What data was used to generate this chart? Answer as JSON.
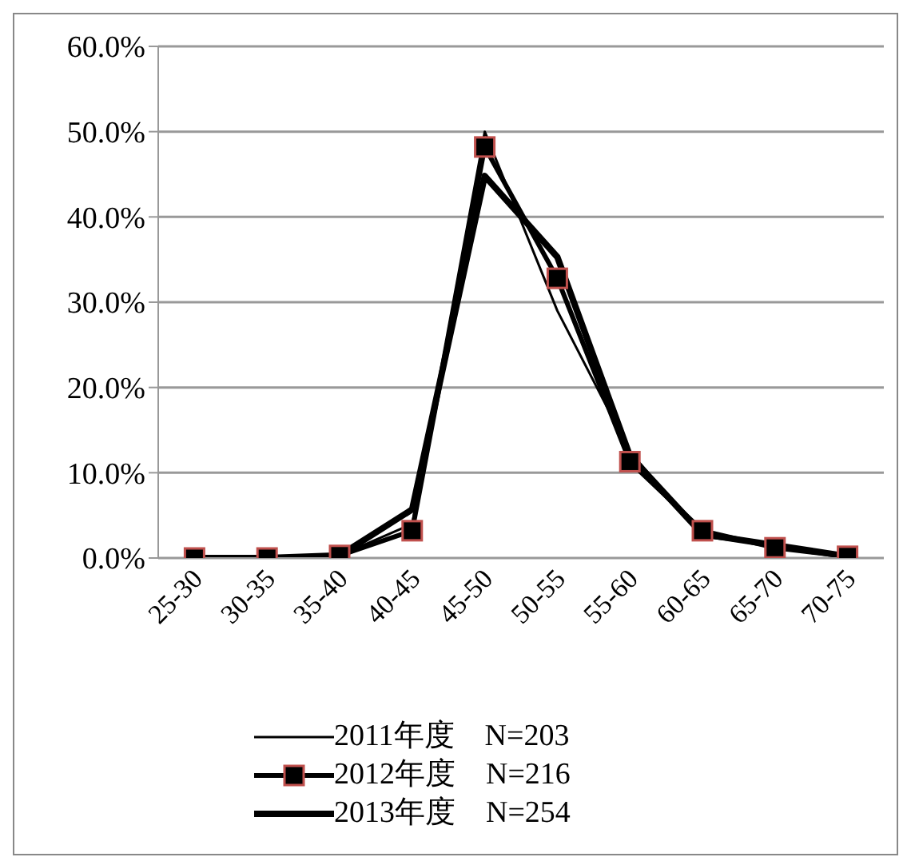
{
  "chart_data": {
    "type": "line",
    "categories": [
      "25-30",
      "30-35",
      "35-40",
      "40-45",
      "45-50",
      "50-55",
      "55-60",
      "60-65",
      "65-70",
      "70-75"
    ],
    "series": [
      {
        "name": "2011年度　N=203",
        "color": "#000000",
        "marker": "none",
        "values": [
          0,
          0,
          0.3,
          4.0,
          50.0,
          29.0,
          12.5,
          2.5,
          1.5,
          0.2
        ]
      },
      {
        "name": "2012年度　N=216",
        "color": "#000000",
        "marker": "square",
        "values": [
          0,
          0,
          0.3,
          3.2,
          48.2,
          32.8,
          11.3,
          3.2,
          1.2,
          0.2
        ]
      },
      {
        "name": "2013年度　N=254",
        "color": "#000000",
        "marker": "none",
        "values": [
          0,
          0,
          0.3,
          5.7,
          44.8,
          35.3,
          12.0,
          2.8,
          1.5,
          0.2
        ]
      }
    ],
    "ylim": [
      0,
      60
    ],
    "yticks": [
      {
        "value": 0,
        "label": "0.0%"
      },
      {
        "value": 10,
        "label": "10.0%"
      },
      {
        "value": 20,
        "label": "20.0%"
      },
      {
        "value": 30,
        "label": "30.0%"
      },
      {
        "value": 40,
        "label": "40.0%"
      },
      {
        "value": 50,
        "label": "50.0%"
      },
      {
        "value": 60,
        "label": "60.0%"
      }
    ],
    "grid": "y",
    "legend": "bottom"
  }
}
